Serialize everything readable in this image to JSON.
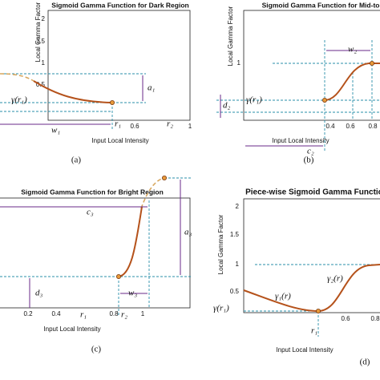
{
  "panels": [
    {
      "title": "Sigmoid Gamma Function for Dark Region",
      "ylabel": "Local Gamma Factor",
      "xlabel": "Input Local Intensity",
      "caption": "(a)",
      "yticks": [
        "2",
        "1.5",
        "1",
        "0.5"
      ],
      "xticks": [
        "0.6",
        "1"
      ],
      "annotations": [
        "a₁",
        "γ(r₁)",
        "w₁",
        "r₁",
        "r₂"
      ]
    },
    {
      "title": "Sigmoid Gamma Function for Mid-tone",
      "ylabel": "Local Gamma Factor",
      "xlabel": "Input Local Intensity",
      "caption": "(b)",
      "yticks": [
        "1"
      ],
      "xticks": [
        "0.4",
        "0.6",
        "0.8"
      ],
      "annotations": [
        "w₂",
        "γ(r₁)",
        "d₂",
        "c₂"
      ]
    },
    {
      "title": "Sigmoid Gamma Function for Bright Region",
      "xlabel": "Input Local Intensity",
      "caption": "(c)",
      "xticks": [
        "0.2",
        "0.4",
        "0.8",
        "1"
      ],
      "annotations": [
        "c₃",
        "a₃",
        "w₃",
        "d₃",
        "r₁",
        "r₂"
      ]
    },
    {
      "title": "Piece-wise Sigmoid Gamma Function",
      "ylabel": "Local Gamma Factor",
      "xlabel": "Input Local Intensity",
      "caption": "(d)",
      "yticks": [
        "2",
        "1.5",
        "1",
        "0.5"
      ],
      "xticks": [
        "0.6",
        "0.8"
      ],
      "annotations": [
        "γ₁(r)",
        "γ₂(r)",
        "γ(r₁)",
        "r₁"
      ]
    }
  ]
}
